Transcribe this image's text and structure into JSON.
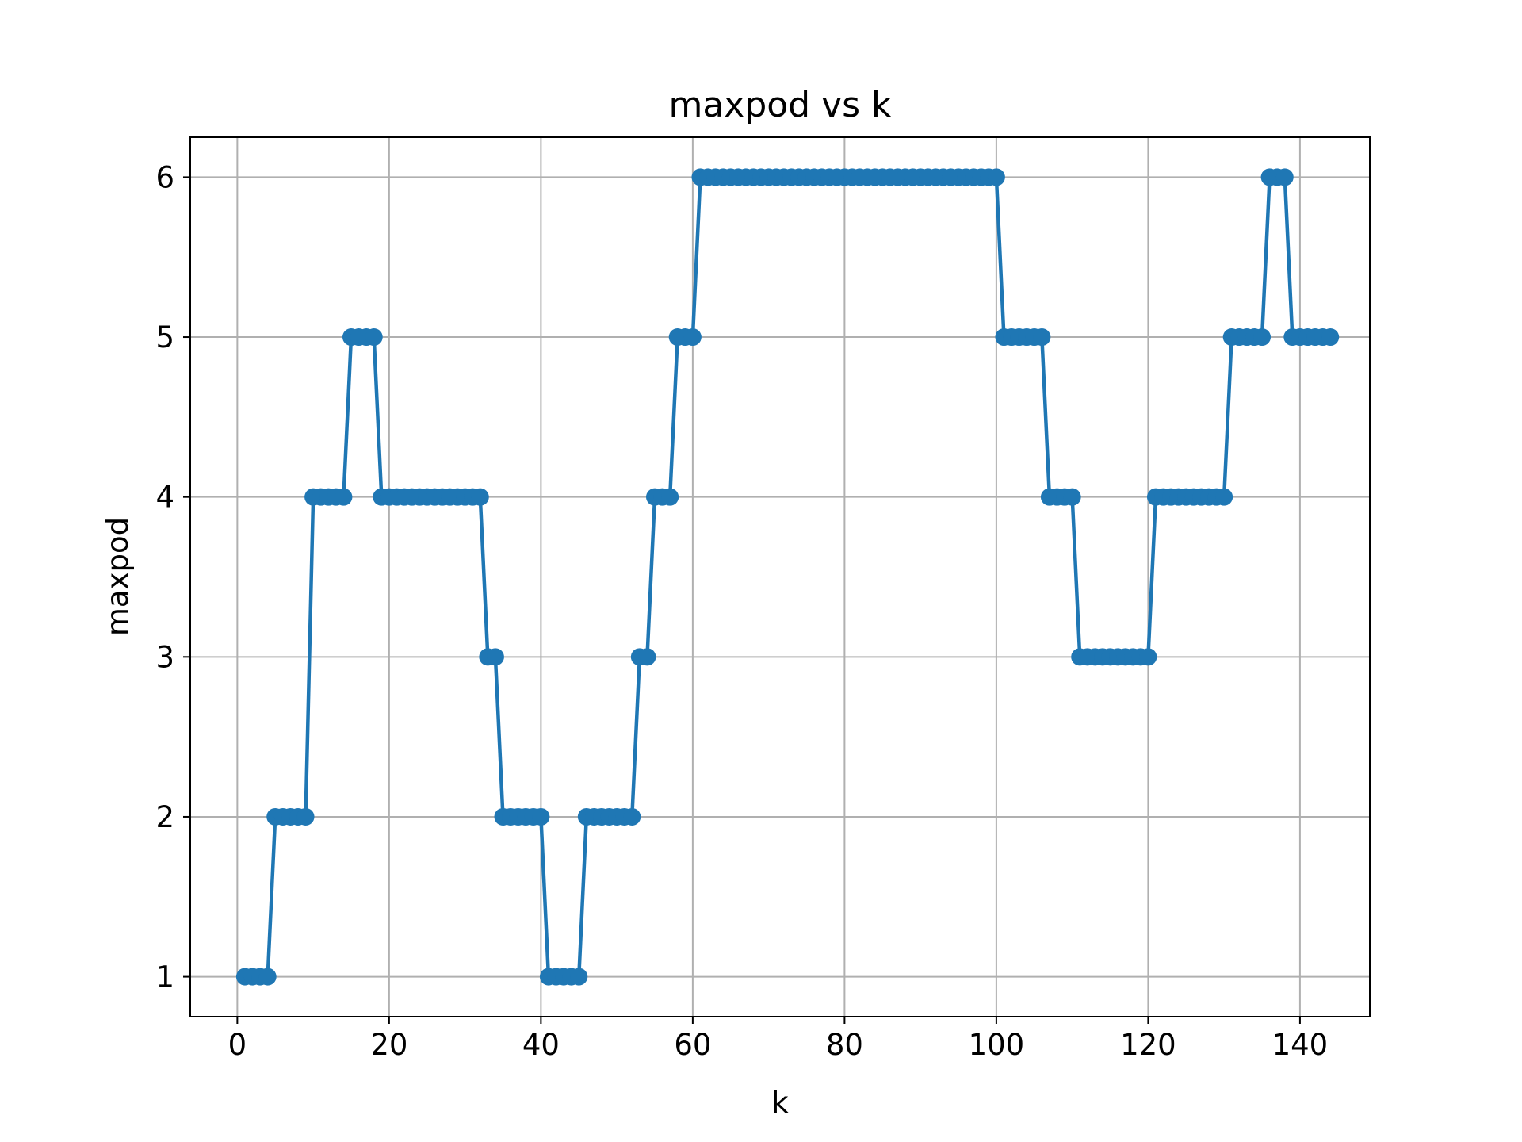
{
  "chart_data": {
    "type": "line",
    "title": "maxpod vs k",
    "xlabel": "k",
    "ylabel": "maxpod",
    "xlim": [
      -6.2,
      149.2
    ],
    "ylim": [
      0.75,
      6.25
    ],
    "x_ticks": [
      0,
      20,
      40,
      60,
      80,
      100,
      120,
      140
    ],
    "y_ticks": [
      1,
      2,
      3,
      4,
      5,
      6
    ],
    "grid": true,
    "marker": "circle",
    "color": "#1f77b4",
    "series": [
      {
        "x_start": 1,
        "x_step": 1,
        "values": [
          1,
          1,
          1,
          1,
          2,
          2,
          2,
          2,
          2,
          4,
          4,
          4,
          4,
          4,
          5,
          5,
          5,
          5,
          4,
          4,
          4,
          4,
          4,
          4,
          4,
          4,
          4,
          4,
          4,
          4,
          4,
          4,
          3,
          3,
          2,
          2,
          2,
          2,
          2,
          2,
          1,
          1,
          1,
          1,
          1,
          2,
          2,
          2,
          2,
          2,
          2,
          2,
          3,
          3,
          4,
          4,
          4,
          5,
          5,
          5,
          6,
          6,
          6,
          6,
          6,
          6,
          6,
          6,
          6,
          6,
          6,
          6,
          6,
          6,
          6,
          6,
          6,
          6,
          6,
          6,
          6,
          6,
          6,
          6,
          6,
          6,
          6,
          6,
          6,
          6,
          6,
          6,
          6,
          6,
          6,
          6,
          6,
          6,
          6,
          6,
          5,
          5,
          5,
          5,
          5,
          5,
          4,
          4,
          4,
          4,
          3,
          3,
          3,
          3,
          3,
          3,
          3,
          3,
          3,
          3,
          4,
          4,
          4,
          4,
          4,
          4,
          4,
          4,
          4,
          4,
          5,
          5,
          5,
          5,
          5,
          6,
          6,
          6,
          5,
          5,
          5,
          5,
          5,
          5
        ]
      }
    ]
  }
}
